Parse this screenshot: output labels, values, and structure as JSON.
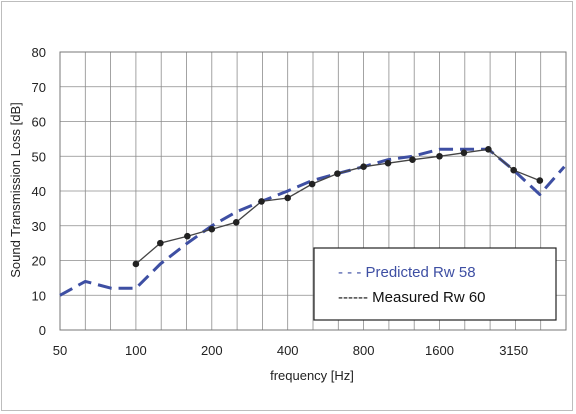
{
  "chart_data": {
    "type": "line",
    "xlabel": "frequency [Hz]",
    "ylabel": "Sound Transmission Loss [dB]",
    "ylim": [
      0,
      80
    ],
    "y_ticks": [
      0,
      10,
      20,
      30,
      40,
      50,
      60,
      70,
      80
    ],
    "x_ticks": [
      "50",
      "100",
      "200",
      "400",
      "800",
      "1600",
      "3150"
    ],
    "grid": true,
    "legend_placement": "bottom-right",
    "x_scale": "log (third-octave bands)",
    "series": [
      {
        "name": "Predicted Rw 58",
        "legend_label": "- - - Predicted Rw 58",
        "color": "#3e4fa3",
        "style": "dashed",
        "x": [
          50,
          63,
          80,
          100,
          125,
          160,
          200,
          250,
          315,
          400,
          500,
          630,
          800,
          1000,
          1250,
          1600,
          2000,
          2500,
          3150,
          4000,
          5000
        ],
        "values": [
          10,
          14,
          12,
          12,
          19,
          25,
          30,
          34,
          37,
          40,
          43,
          45,
          47,
          49,
          50,
          52,
          52,
          52,
          46,
          39,
          47
        ]
      },
      {
        "name": "Measured Rw 60",
        "legend_label": "------ Measured Rw 60",
        "color": "#222222",
        "style": "solid-markers",
        "x": [
          100,
          125,
          160,
          200,
          250,
          315,
          400,
          500,
          630,
          800,
          1000,
          1250,
          1600,
          2000,
          2500,
          3150,
          4000
        ],
        "values": [
          19,
          25,
          27,
          29,
          31,
          37,
          38,
          42,
          45,
          47,
          48,
          49,
          50,
          51,
          52,
          46,
          43
        ]
      }
    ]
  }
}
